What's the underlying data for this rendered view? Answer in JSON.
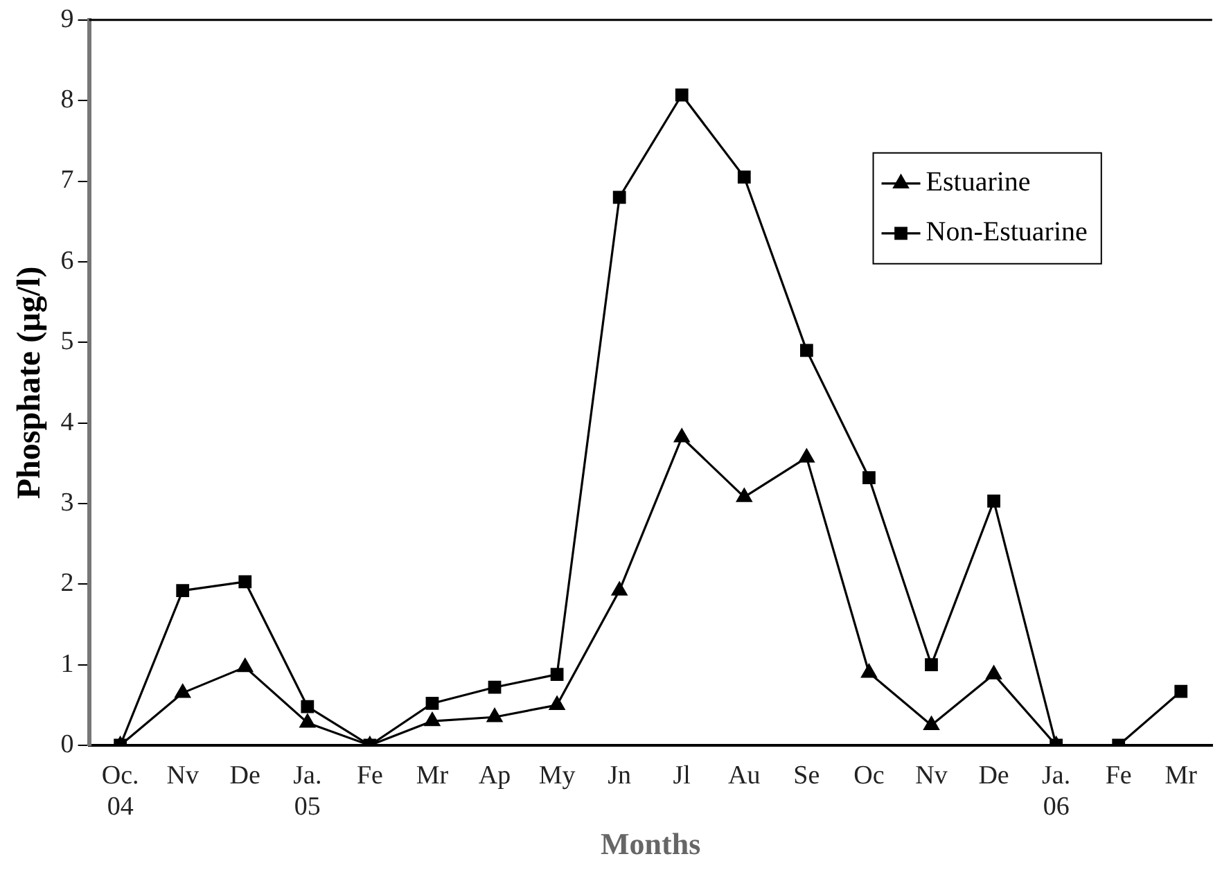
{
  "chart_data": {
    "type": "line",
    "xlabel": "Months",
    "ylabel": "Phosphate (µg/l)",
    "categories": [
      "Oc.\n04",
      "Nv",
      "De",
      "Ja.\n05",
      "Fe",
      "Mr",
      "Ap",
      "My",
      "Jn",
      "Jl",
      "Au",
      "Se",
      "Oc",
      "Nv",
      "De",
      "Ja.\n06",
      "Fe",
      "Mr"
    ],
    "series": [
      {
        "name": "Estuarine",
        "color": "#000000",
        "marker": "triangle",
        "values": [
          0,
          0.65,
          0.97,
          0.28,
          0,
          0.3,
          0.35,
          0.5,
          1.92,
          3.82,
          3.08,
          3.57,
          0.9,
          0.25,
          0.88,
          0,
          null,
          null
        ]
      },
      {
        "name": "Non-Estuarine",
        "color": "#000000",
        "marker": "square",
        "values": [
          0,
          1.92,
          2.03,
          0.48,
          0,
          0.52,
          0.72,
          0.88,
          6.8,
          8.07,
          7.05,
          4.9,
          3.32,
          1.0,
          3.03,
          0,
          0,
          0.67
        ]
      }
    ],
    "ylim": [
      0,
      9
    ],
    "yticks": [
      0,
      1,
      2,
      3,
      4,
      5,
      6,
      7,
      8,
      9
    ],
    "grid": false,
    "legend": "top right",
    "line_style": "solid"
  }
}
